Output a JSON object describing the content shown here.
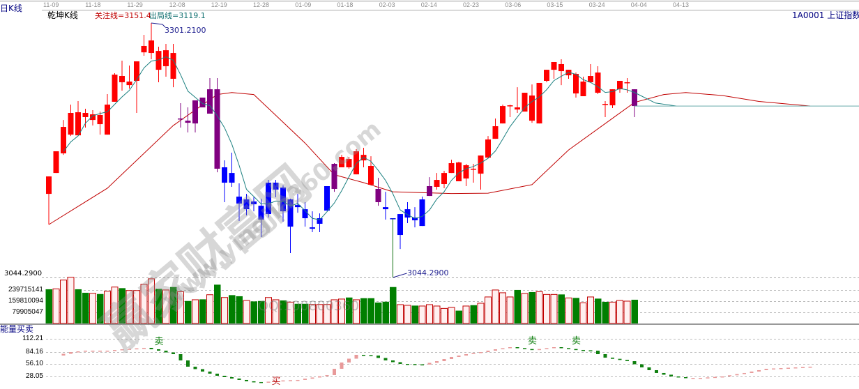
{
  "header": {
    "period_label": "日K线",
    "indicator_name": "乾坤K线",
    "watch_line": "关注线=3151.4",
    "exit_line": "出局线=3119.1",
    "symbol": "1A0001  上证指数"
  },
  "date_axis": [
    "11-09",
    "11-18",
    "11-29",
    "12-08",
    "12-19",
    "12-28",
    "01-09",
    "01-18",
    "02-03",
    "02-14",
    "02-23",
    "03-06",
    "03-15",
    "03-24",
    "04-04",
    "04-13"
  ],
  "markers": {
    "high_label": "3301.2100",
    "low_label": "3044.2900",
    "low_line_label": "3044.2900"
  },
  "colors": {
    "r": "#ff0000",
    "b": "#0000ff",
    "p": "#800080",
    "ma_short": "#1a7f7f",
    "ma_long": "#c00000",
    "vol_up_stroke": "#c00000",
    "vol_up_fill": "#fff0f0",
    "vol_down": "#007f00",
    "energy_up": "#e89a9a",
    "energy_down": "#108010"
  },
  "chart_data": [
    {
      "type": "candlestick",
      "ylim": [
        3044.29,
        3301.21
      ],
      "candles_ohlc_color": [
        [
          3128.7,
          3146.3,
          3097.7,
          3146.3,
          "r"
        ],
        [
          3149.8,
          3171.7,
          3149.8,
          3171.7,
          "r"
        ],
        [
          3169.6,
          3203.3,
          3168.1,
          3196.3,
          "r"
        ],
        [
          3188.5,
          3218.8,
          3187.1,
          3210.4,
          "r"
        ],
        [
          3187.8,
          3222.4,
          3187.8,
          3211.1,
          "r"
        ],
        [
          3206.2,
          3214.6,
          3195.6,
          3210.4,
          "r"
        ],
        [
          3203.3,
          3213.2,
          3197.7,
          3209.0,
          "r"
        ],
        [
          3199.1,
          3211.8,
          3188.5,
          3208.3,
          "r"
        ],
        [
          3188.5,
          3229.4,
          3188.5,
          3218.8,
          "r"
        ],
        [
          3221.7,
          3250.5,
          3221.7,
          3249.1,
          "r"
        ],
        [
          3241.4,
          3263.2,
          3232.9,
          3247.7,
          "r"
        ],
        [
          3238.5,
          3258.3,
          3235.0,
          3242.1,
          "r"
        ],
        [
          3242.8,
          3262.5,
          3210.4,
          3262.5,
          "r"
        ],
        [
          3271.6,
          3289.2,
          3268.1,
          3278.0,
          "r"
        ],
        [
          3270.9,
          3301.21,
          3264.6,
          3283.6,
          "r"
        ],
        [
          3273.0,
          3277.3,
          3241.4,
          3254.0,
          "r"
        ],
        [
          3273.7,
          3280.1,
          3247.0,
          3257.6,
          "r"
        ],
        [
          3270.9,
          3280.1,
          3236.4,
          3244.9,
          "r"
        ],
        [
          3204.0,
          3220.3,
          3195.6,
          3204.8,
          "p"
        ],
        [
          3202.6,
          3216.0,
          3190.7,
          3200.5,
          "p"
        ],
        [
          3199.8,
          3223.1,
          3190.7,
          3223.1,
          "p"
        ],
        [
          3216.0,
          3225.9,
          3216.0,
          3225.9,
          "p"
        ],
        [
          3209.7,
          3245.6,
          3209.7,
          3234.3,
          "p"
        ],
        [
          3234.3,
          3245.6,
          3150.5,
          3154.1,
          "p"
        ],
        [
          3155.5,
          3162.5,
          3120.3,
          3140.0,
          "b"
        ],
        [
          3149.8,
          3170.3,
          3135.8,
          3140.0,
          "b"
        ],
        [
          3125.9,
          3139.3,
          3101.3,
          3118.9,
          "b"
        ],
        [
          3123.1,
          3128.7,
          3106.9,
          3113.2,
          "b"
        ],
        [
          3121.0,
          3125.2,
          3111.1,
          3118.2,
          "b"
        ],
        [
          3116.7,
          3123.8,
          3085.0,
          3102.7,
          "b"
        ],
        [
          3108.3,
          3142.8,
          3104.8,
          3140.0,
          "b"
        ],
        [
          3140.0,
          3142.8,
          3125.2,
          3133.0,
          "b"
        ],
        [
          3135.1,
          3137.2,
          3100.6,
          3111.1,
          "b"
        ],
        [
          3123.1,
          3123.8,
          3068.9,
          3095.6,
          "b"
        ],
        [
          3117.4,
          3128.7,
          3109.7,
          3115.3,
          "b"
        ],
        [
          3113.2,
          3120.3,
          3095.6,
          3104.1,
          "b"
        ],
        [
          3094.9,
          3111.1,
          3090.0,
          3093.5,
          "b"
        ],
        [
          3098.5,
          3109.0,
          3090.0,
          3104.1,
          "b"
        ],
        [
          3111.8,
          3136.5,
          3111.8,
          3136.5,
          "b"
        ],
        [
          3133.7,
          3159.7,
          3130.8,
          3159.0,
          "p"
        ],
        [
          3155.5,
          3168.1,
          3155.5,
          3166.0,
          "r"
        ],
        [
          3155.5,
          3166.0,
          3154.1,
          3163.9,
          "r"
        ],
        [
          3148.4,
          3173.8,
          3148.4,
          3171.7,
          "r"
        ],
        [
          3162.5,
          3175.2,
          3155.5,
          3168.1,
          "r"
        ],
        [
          3156.9,
          3166.7,
          3137.9,
          3137.9,
          "r"
        ],
        [
          3133.7,
          3144.9,
          3116.7,
          3120.3,
          "p"
        ],
        [
          3115.3,
          3130.8,
          3102.7,
          3113.2,
          "b"
        ],
        [
          3104.1,
          3104.1,
          3044.29,
          3104.1,
          "b"
        ],
        [
          3108.3,
          3108.3,
          3073.1,
          3087.2,
          "b"
        ],
        [
          3104.8,
          3120.3,
          3099.2,
          3113.2,
          "b"
        ],
        [
          3104.8,
          3115.3,
          3094.9,
          3102.0,
          "b"
        ],
        [
          3096.3,
          3125.9,
          3096.3,
          3123.1,
          "b"
        ],
        [
          3126.6,
          3145.6,
          3126.6,
          3136.5,
          "p"
        ],
        [
          3135.8,
          3149.8,
          3133.0,
          3142.8,
          "r"
        ],
        [
          3138.6,
          3152.0,
          3134.4,
          3149.8,
          "r"
        ],
        [
          3149.8,
          3163.2,
          3149.8,
          3159.7,
          "r"
        ],
        [
          3141.4,
          3161.1,
          3141.4,
          3160.4,
          "r"
        ],
        [
          3144.2,
          3159.0,
          3136.5,
          3157.6,
          "r"
        ],
        [
          3154.1,
          3159.0,
          3140.0,
          3154.1,
          "r"
        ],
        [
          3149.1,
          3167.4,
          3133.0,
          3167.4,
          "r"
        ],
        [
          3165.3,
          3187.1,
          3165.3,
          3183.6,
          "r"
        ],
        [
          3184.3,
          3204.8,
          3184.3,
          3197.0,
          "r"
        ],
        [
          3199.8,
          3218.8,
          3199.8,
          3217.4,
          "r"
        ],
        [
          3218.1,
          3218.8,
          3206.2,
          3217.4,
          "r"
        ],
        [
          3213.9,
          3236.4,
          3210.4,
          3216.0,
          "r"
        ],
        [
          3211.8,
          3230.8,
          3211.8,
          3230.8,
          "r"
        ],
        [
          3202.6,
          3239.2,
          3200.5,
          3228.0,
          "r"
        ],
        [
          3199.8,
          3240.7,
          3199.8,
          3240.7,
          "r"
        ],
        [
          3242.8,
          3254.0,
          3241.4,
          3254.0,
          "r"
        ],
        [
          3254.0,
          3261.8,
          3244.9,
          3261.8,
          "r"
        ],
        [
          3259.7,
          3264.6,
          3238.5,
          3252.6,
          "r"
        ],
        [
          3254.0,
          3254.0,
          3244.9,
          3248.4,
          "r"
        ],
        [
          3249.8,
          3251.2,
          3225.9,
          3230.1,
          "r"
        ],
        [
          3242.1,
          3247.0,
          3227.3,
          3227.3,
          "r"
        ],
        [
          3241.4,
          3259.7,
          3241.4,
          3247.7,
          "r"
        ],
        [
          3251.2,
          3257.6,
          3229.4,
          3230.8,
          "r"
        ],
        [
          3219.5,
          3222.4,
          3206.2,
          3219.5,
          "r"
        ],
        [
          3218.1,
          3234.3,
          3215.3,
          3234.3,
          "r"
        ],
        [
          3234.3,
          3242.8,
          3230.8,
          3242.8,
          "r"
        ],
        [
          3241.4,
          3245.6,
          3230.8,
          3241.4,
          "r"
        ],
        [
          3234.3,
          3234.3,
          3206.2,
          3217.4,
          "p"
        ]
      ],
      "long_line_day_price": [
        [
          0,
          3097.7
        ],
        [
          8,
          3134.4
        ],
        [
          17,
          3197.7
        ],
        [
          23,
          3229
        ],
        [
          25,
          3231
        ],
        [
          28,
          3229
        ],
        [
          31,
          3208
        ],
        [
          35,
          3180
        ],
        [
          39,
          3148
        ],
        [
          43,
          3140
        ],
        [
          47,
          3130.8
        ],
        [
          55,
          3129
        ],
        [
          60,
          3129.4
        ],
        [
          66,
          3138
        ],
        [
          71,
          3173
        ],
        [
          77,
          3205
        ],
        [
          80,
          3221
        ],
        [
          84,
          3229
        ],
        [
          87,
          3231
        ],
        [
          92,
          3228
        ],
        [
          97,
          3222
        ],
        [
          104,
          3217.4
        ]
      ],
      "projection_level": 3217.4
    },
    {
      "type": "bar",
      "name": "volume",
      "y_ticks": [
        "239715141",
        "159810094",
        "79905047"
      ],
      "values_direction": [
        [
          245000000,
          "down"
        ],
        [
          248000000,
          "up"
        ],
        [
          311000000,
          "up"
        ],
        [
          331000000,
          "up"
        ],
        [
          245000000,
          "down"
        ],
        [
          220000000,
          "down"
        ],
        [
          216000000,
          "up"
        ],
        [
          211000000,
          "down"
        ],
        [
          231000000,
          "up"
        ],
        [
          261000000,
          "up"
        ],
        [
          253000000,
          "down"
        ],
        [
          236000000,
          "up"
        ],
        [
          236000000,
          "up"
        ],
        [
          281000000,
          "up"
        ],
        [
          320000000,
          "up"
        ],
        [
          248000000,
          "down"
        ],
        [
          240000000,
          "up"
        ],
        [
          261000000,
          "down"
        ],
        [
          228000000,
          "up"
        ],
        [
          161000000,
          "down"
        ],
        [
          170000000,
          "up"
        ],
        [
          173000000,
          "down"
        ],
        [
          206000000,
          "up"
        ],
        [
          278000000,
          "down"
        ],
        [
          186000000,
          "up"
        ],
        [
          203000000,
          "down"
        ],
        [
          195000000,
          "down"
        ],
        [
          165000000,
          "up"
        ],
        [
          158000000,
          "down"
        ],
        [
          161000000,
          "down"
        ],
        [
          186000000,
          "up"
        ],
        [
          170000000,
          "up"
        ],
        [
          165000000,
          "down"
        ],
        [
          153000000,
          "up"
        ],
        [
          141000000,
          "down"
        ],
        [
          141000000,
          "down"
        ],
        [
          136000000,
          "up"
        ],
        [
          136000000,
          "up"
        ],
        [
          136000000,
          "up"
        ],
        [
          170000000,
          "up"
        ],
        [
          175000000,
          "up"
        ],
        [
          186000000,
          "down"
        ],
        [
          170000000,
          "up"
        ],
        [
          181000000,
          "down"
        ],
        [
          181000000,
          "down"
        ],
        [
          150000000,
          "down"
        ],
        [
          156000000,
          "down"
        ],
        [
          261000000,
          "down"
        ],
        [
          135000000,
          "up"
        ],
        [
          130000000,
          "up"
        ],
        [
          128000000,
          "down"
        ],
        [
          125000000,
          "up"
        ],
        [
          135000000,
          "up"
        ],
        [
          125000000,
          "up"
        ],
        [
          108000000,
          "up"
        ],
        [
          115000000,
          "up"
        ],
        [
          92000000,
          "down"
        ],
        [
          125000000,
          "up"
        ],
        [
          131000000,
          "down"
        ],
        [
          145000000,
          "up"
        ],
        [
          190000000,
          "up"
        ],
        [
          240000000,
          "up"
        ],
        [
          220000000,
          "up"
        ],
        [
          190000000,
          "up"
        ],
        [
          240000000,
          "down"
        ],
        [
          215000000,
          "up"
        ],
        [
          225000000,
          "down"
        ],
        [
          228000000,
          "up"
        ],
        [
          208000000,
          "up"
        ],
        [
          208000000,
          "up"
        ],
        [
          208000000,
          "down"
        ],
        [
          183000000,
          "up"
        ],
        [
          183000000,
          "down"
        ],
        [
          148000000,
          "up"
        ],
        [
          190000000,
          "up"
        ],
        [
          178000000,
          "down"
        ],
        [
          155000000,
          "down"
        ],
        [
          153000000,
          "up"
        ],
        [
          165000000,
          "up"
        ],
        [
          160000000,
          "up"
        ],
        [
          170000000,
          "down"
        ]
      ]
    },
    {
      "type": "bar",
      "title": "能量买卖",
      "y_ticks": [
        "112.21",
        "84.16",
        "56.10",
        "28.05"
      ],
      "ylim": [
        28.05,
        112.21
      ],
      "day_value": [
        [
          1,
          74.8
        ],
        [
          3,
          82.6
        ],
        [
          5,
          85.7
        ],
        [
          8,
          85.7
        ],
        [
          10,
          88.8
        ],
        [
          13,
          92.0
        ],
        [
          15,
          85.7
        ],
        [
          17,
          77.9
        ],
        [
          18,
          63.9
        ],
        [
          19,
          49.9
        ],
        [
          21,
          39.0
        ],
        [
          23,
          29.6
        ],
        [
          25,
          23.4
        ],
        [
          27,
          17.2
        ],
        [
          29,
          14.1
        ],
        [
          31,
          18.7
        ],
        [
          34,
          20.3
        ],
        [
          38,
          31.2
        ],
        [
          40,
          59.2
        ],
        [
          42,
          76.4
        ],
        [
          44,
          74.8
        ],
        [
          46,
          63.9
        ],
        [
          48,
          56.1
        ],
        [
          51,
          54.6
        ],
        [
          53,
          62.3
        ],
        [
          55,
          71.7
        ],
        [
          57,
          77.9
        ],
        [
          59,
          82.6
        ],
        [
          61,
          88.8
        ],
        [
          63,
          93.5
        ],
        [
          66,
          87.3
        ],
        [
          69,
          93.5
        ],
        [
          72,
          87.3
        ],
        [
          74,
          85.7
        ],
        [
          76,
          70.1
        ],
        [
          79,
          62.3
        ],
        [
          81,
          48.3
        ],
        [
          83,
          35.9
        ],
        [
          85,
          28.1
        ],
        [
          87,
          24.9
        ],
        [
          89,
          24.9
        ],
        [
          92,
          28.1
        ],
        [
          95,
          35.9
        ],
        [
          98,
          45.2
        ],
        [
          102,
          48.3
        ],
        [
          104,
          49.9
        ]
      ],
      "signals": [
        {
          "day": 15,
          "label": "卖",
          "type": "sell"
        },
        {
          "day": 31,
          "label": "买",
          "type": "buy"
        },
        {
          "day": 66,
          "label": "卖",
          "type": "sell"
        },
        {
          "day": 72,
          "label": "卖",
          "type": "sell"
        }
      ]
    }
  ],
  "watermarks": {
    "site_name": "赢家财富网",
    "url": "www.yingjia360.com",
    "qq": "QQ:100800360"
  }
}
